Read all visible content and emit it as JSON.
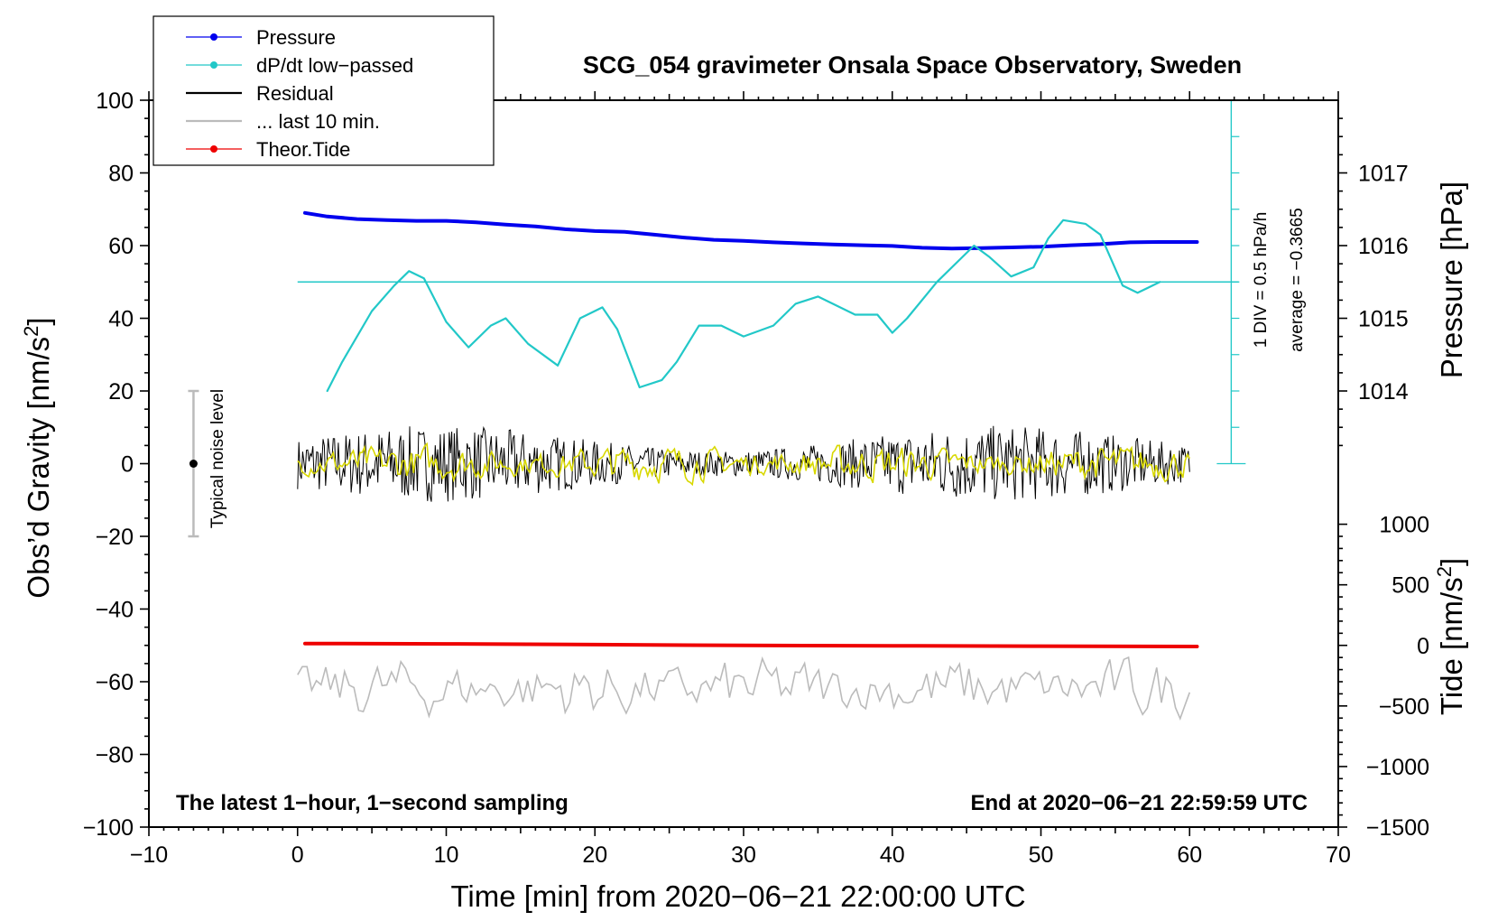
{
  "chart_data": {
    "type": "line",
    "title": "SCG_054 gravimeter Onsala Space Observatory, Sweden",
    "xlabel": "Time [min] from 2020−06−21 22:00:00 UTC",
    "ylabel_left": "Obs’d Gravity [nm/s²]",
    "ylabel_right_top": "Pressure [hPa]",
    "ylabel_right_bottom": "Tide [nm/s²]",
    "xlim": [
      -10,
      70
    ],
    "ylim": [
      -100,
      100
    ],
    "x_ticks": [
      -10,
      0,
      10,
      20,
      30,
      40,
      50,
      60,
      70
    ],
    "x_tick_labels": [
      "−10",
      "0",
      "10",
      "20",
      "30",
      "40",
      "50",
      "60",
      "70"
    ],
    "y_ticks": [
      -100,
      -80,
      -60,
      -40,
      -20,
      0,
      20,
      40,
      60,
      80,
      100
    ],
    "y_tick_labels": [
      "−100",
      "−80",
      "−60",
      "−40",
      "−20",
      "0",
      "20",
      "40",
      "60",
      "80",
      "100"
    ],
    "pressure_axis": {
      "ticks": [
        1014,
        1015,
        1016,
        1017
      ],
      "tick_labels": [
        "1014",
        "1015",
        "1016",
        "1017"
      ],
      "map": {
        "hpa": [
          1014,
          1017
        ],
        "gravity_units": [
          20,
          80
        ]
      }
    },
    "tide_axis": {
      "ticks": [
        -1500,
        -1000,
        -500,
        0,
        500,
        1000
      ],
      "tick_labels": [
        "−1500",
        "−1000",
        "−500",
        "0",
        "500",
        "1000"
      ],
      "map": {
        "tide": [
          -1500,
          0
        ],
        "gravity_units": [
          -100,
          -50
        ]
      }
    },
    "dpdt_scale": {
      "label": "1 DIV = 0.5 hPa/h",
      "average_label": "average = −0.3665",
      "baseline_y": 50,
      "scale_x": 62.8,
      "scale_range_y": [
        0,
        100
      ]
    },
    "noise_bar": {
      "x": -7,
      "y": 0,
      "range": [
        -20,
        20
      ],
      "label": "Typical noise level"
    },
    "legend": [
      {
        "label": "Pressure",
        "color": "#0000ee",
        "marker": true
      },
      {
        "label": "dP/dt low−passed",
        "color": "#22c8c8",
        "marker": true
      },
      {
        "label": "Residual",
        "color": "#000000",
        "marker": false
      },
      {
        "label": "... last 10 min.",
        "color": "#bbbbbb",
        "marker": false
      },
      {
        "label": "Theor.Tide",
        "color": "#ee0000",
        "marker": true
      }
    ],
    "series": [
      {
        "name": "Pressure",
        "color": "#0000ee",
        "x": [
          0.5,
          2,
          4,
          6,
          8,
          10,
          12,
          14,
          16,
          18,
          20,
          22,
          24,
          26,
          28,
          30,
          32,
          34,
          36,
          38,
          40,
          42,
          44,
          46,
          48,
          50,
          52,
          54,
          56,
          58,
          60.5
        ],
        "y": [
          69,
          68,
          67.3,
          67,
          66.8,
          66.8,
          66.4,
          65.8,
          65.3,
          64.5,
          64,
          63.8,
          63,
          62.2,
          61.6,
          61.3,
          60.9,
          60.6,
          60.3,
          60.1,
          59.9,
          59.4,
          59.2,
          59.3,
          59.5,
          59.7,
          60.1,
          60.4,
          60.9,
          61,
          61
        ]
      },
      {
        "name": "dP/dt low-passed",
        "color": "#22c8c8",
        "x": [
          2,
          3,
          5,
          6.5,
          7.5,
          8.5,
          10,
          11.5,
          13,
          14,
          15.5,
          17.5,
          19,
          20.5,
          21.5,
          23,
          24.5,
          25.5,
          27,
          28.5,
          30,
          32,
          33.5,
          35,
          36,
          37.5,
          39,
          40,
          41,
          43,
          45.5,
          46.5,
          48,
          49.5,
          50.5,
          51.5,
          53,
          54,
          55.5,
          56.5,
          58
        ],
        "y": [
          20,
          28,
          42,
          49,
          53,
          51,
          39,
          32,
          38,
          40,
          33,
          27,
          40,
          43,
          37,
          21,
          23,
          28,
          38,
          38,
          35,
          38,
          44,
          46,
          44,
          41,
          41,
          36,
          40,
          50,
          60,
          57,
          51.5,
          54,
          62,
          67,
          66,
          63,
          49,
          47,
          50
        ]
      },
      {
        "name": "Residual",
        "color": "#000000",
        "x_range": [
          0,
          60
        ],
        "amplitude": 10,
        "samples": 700
      },
      {
        "name": "Residual smoothed",
        "color": "#d8d800",
        "x_range": [
          0,
          60
        ],
        "amplitude": 4,
        "samples": 400
      },
      {
        "name": "... last 10 min.",
        "color": "#bbbbbb",
        "x_range": [
          0,
          60
        ],
        "center": -62,
        "amplitude": 7,
        "samples": 190
      },
      {
        "name": "Theor.Tide",
        "color": "#ee0000",
        "x": [
          0.5,
          10,
          20,
          30,
          40,
          50,
          60.5
        ],
        "y": [
          -49.5,
          -49.6,
          -49.8,
          -50,
          -50.1,
          -50.2,
          -50.3
        ]
      }
    ],
    "annotations": {
      "left_note": "The latest 1−hour, 1−second sampling",
      "right_note": "End at 2020−06−21 22:59:59 UTC"
    }
  }
}
